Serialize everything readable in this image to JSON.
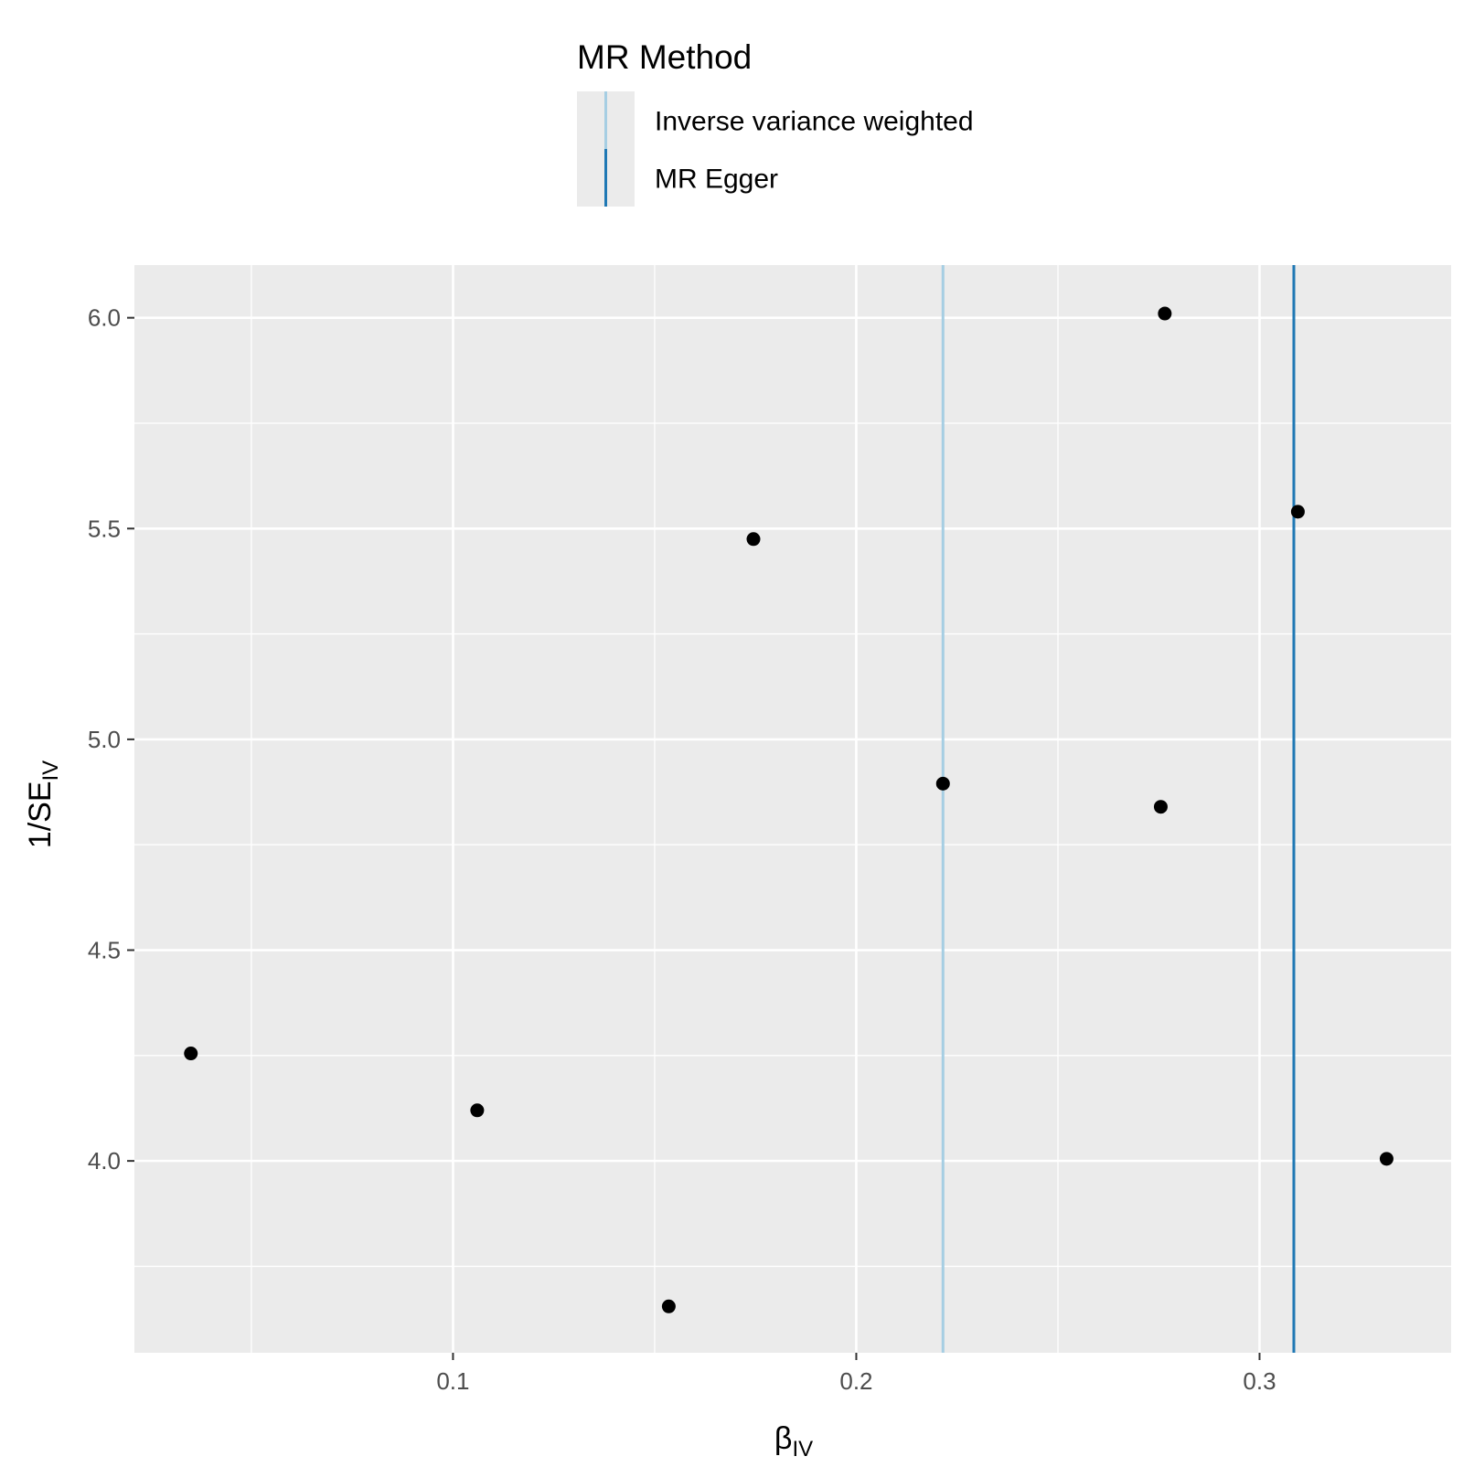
{
  "chart_data": {
    "type": "scatter",
    "title": "",
    "xlabel": {
      "main": "β",
      "sub": "IV"
    },
    "ylabel": {
      "main": "1/SE",
      "sub": "IV"
    },
    "xlim": [
      0.021,
      0.3475
    ],
    "ylim": [
      3.545,
      6.125
    ],
    "x_ticks": [
      0.1,
      0.2,
      0.3
    ],
    "x_tick_labels": [
      "0.1",
      "0.2",
      "0.3"
    ],
    "x_minor_ticks": [
      0.05,
      0.15,
      0.25
    ],
    "y_ticks": [
      4.0,
      4.5,
      5.0,
      5.5,
      6.0
    ],
    "y_tick_labels": [
      "4.0",
      "4.5",
      "5.0",
      "5.5",
      "6.0"
    ],
    "y_minor_ticks": [
      3.75,
      4.25,
      4.75,
      5.25,
      5.75
    ],
    "grid": true,
    "background": "#ebebeb",
    "points": [
      {
        "x": 0.035,
        "y": 4.255
      },
      {
        "x": 0.106,
        "y": 4.12
      },
      {
        "x": 0.1535,
        "y": 3.655
      },
      {
        "x": 0.1745,
        "y": 5.475
      },
      {
        "x": 0.2215,
        "y": 4.895
      },
      {
        "x": 0.2755,
        "y": 4.84
      },
      {
        "x": 0.2765,
        "y": 6.01
      },
      {
        "x": 0.3095,
        "y": 5.54
      },
      {
        "x": 0.3315,
        "y": 4.005
      }
    ],
    "point_color": "#000000",
    "vlines": [
      {
        "name": "Inverse variance weighted",
        "x": 0.2215,
        "color": "#a6cee3"
      },
      {
        "name": "MR Egger",
        "x": 0.3085,
        "color": "#1f78b4"
      }
    ],
    "legend": {
      "title": "MR Method",
      "placement": "top",
      "entries": [
        {
          "label": "Inverse variance weighted",
          "color": "#a6cee3"
        },
        {
          "label": "MR Egger",
          "color": "#1f78b4"
        }
      ]
    }
  }
}
